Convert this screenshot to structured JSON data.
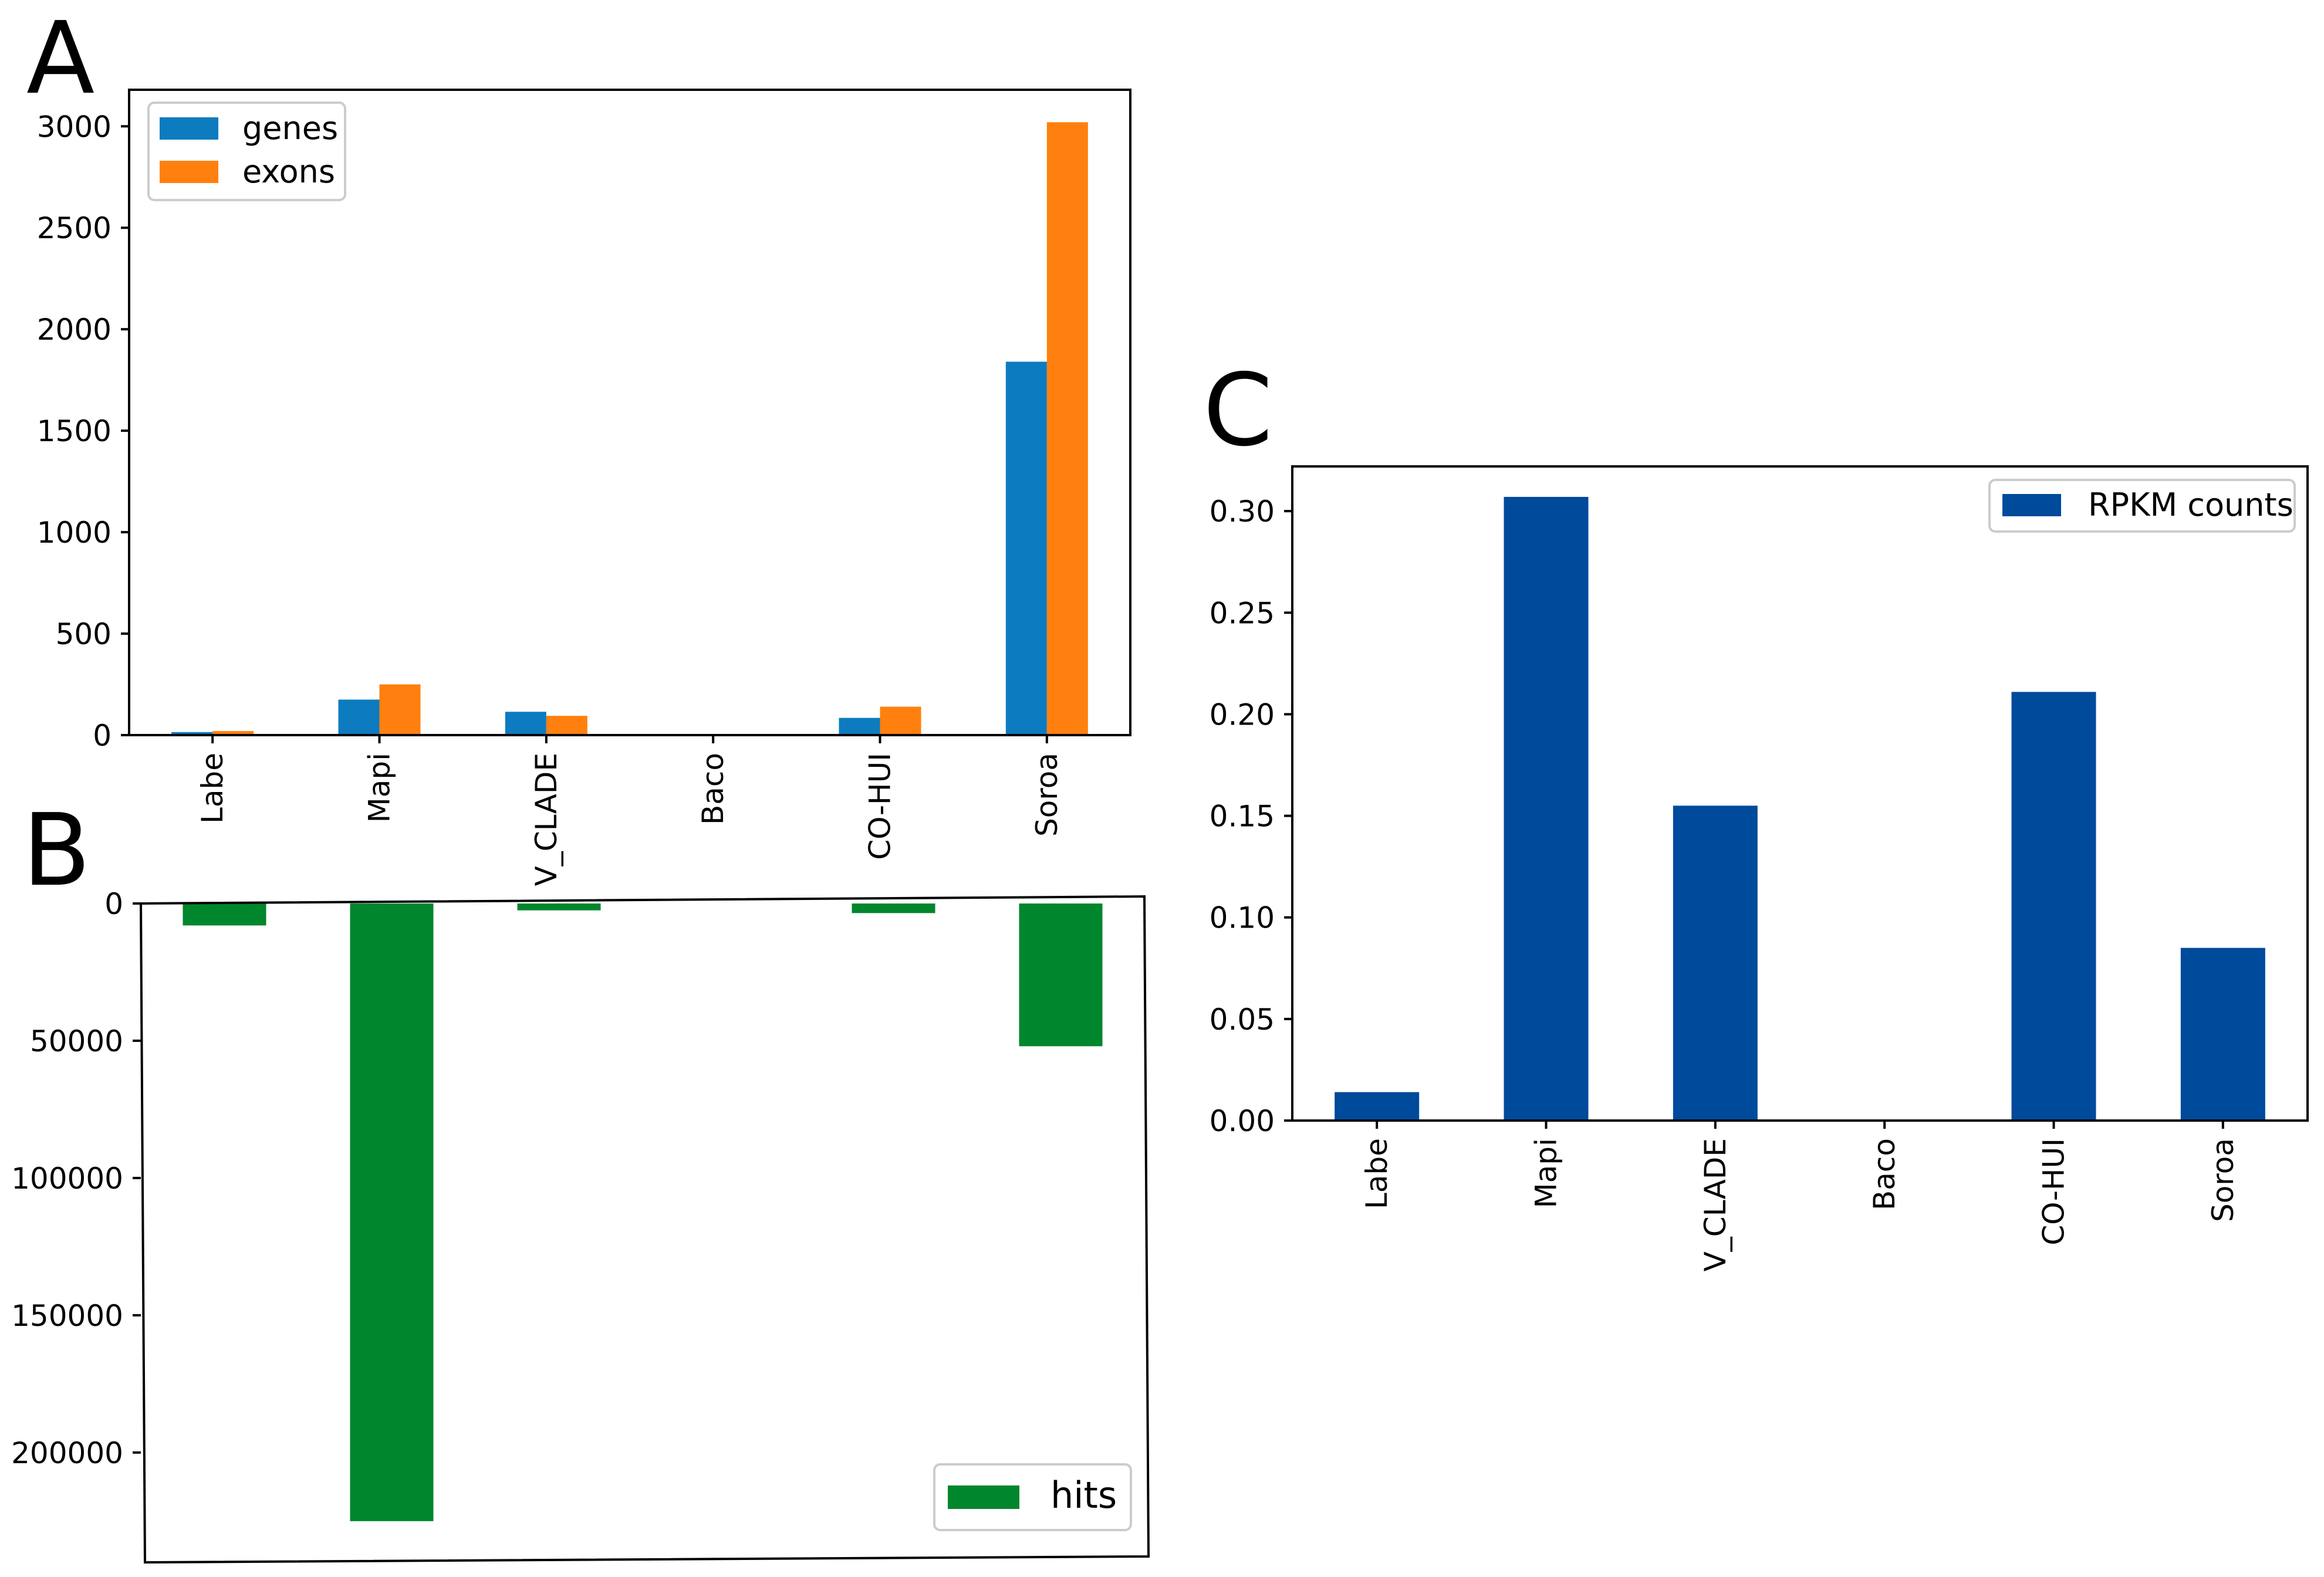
{
  "panels": {
    "a": {
      "label": "A"
    },
    "b": {
      "label": "B"
    },
    "c": {
      "label": "C"
    }
  },
  "colors": {
    "genes": "#0d7bc0",
    "exons": "#ff800e",
    "hits": "#00862d",
    "rpkm": "#004a9c",
    "axis": "#000000",
    "legend_border": "#cccccc"
  },
  "chart_data": [
    {
      "id": "A",
      "type": "bar",
      "categories": [
        "Labe",
        "Mapi",
        "V_CLADE",
        "Baco",
        "CO-HUI",
        "Soroa"
      ],
      "series": [
        {
          "name": "genes",
          "values": [
            15,
            175,
            115,
            0,
            85,
            1840
          ]
        },
        {
          "name": "exons",
          "values": [
            20,
            250,
            95,
            0,
            140,
            3020
          ]
        }
      ],
      "yticks": [
        0,
        500,
        1000,
        1500,
        2000,
        2500,
        3000
      ],
      "ylim": [
        0,
        3180
      ],
      "legend": "top-left",
      "title": "",
      "xlabel": "",
      "ylabel": ""
    },
    {
      "id": "B",
      "type": "bar",
      "categories": [
        "Labe",
        "Mapi",
        "V_CLADE",
        "Baco",
        "CO-HUI",
        "Soroa"
      ],
      "series": [
        {
          "name": "hits",
          "values": [
            8000,
            225000,
            2500,
            0,
            3500,
            52000
          ]
        }
      ],
      "yticks": [
        0,
        50000,
        100000,
        150000,
        200000
      ],
      "ylim": [
        0,
        240000
      ],
      "y_inverted": true,
      "legend": "bottom-right",
      "title": "",
      "xlabel": "",
      "ylabel": ""
    },
    {
      "id": "C",
      "type": "bar",
      "categories": [
        "Labe",
        "Mapi",
        "V_CLADE",
        "Baco",
        "CO-HUI",
        "Soroa"
      ],
      "series": [
        {
          "name": "RPKM counts",
          "values": [
            0.014,
            0.307,
            0.155,
            0.0,
            0.211,
            0.085
          ]
        }
      ],
      "yticks": [
        "0.00",
        "0.05",
        "0.10",
        "0.15",
        "0.20",
        "0.25",
        "0.30"
      ],
      "ylim": [
        0,
        0.322
      ],
      "legend": "top-right",
      "title": "",
      "xlabel": "",
      "ylabel": ""
    }
  ]
}
